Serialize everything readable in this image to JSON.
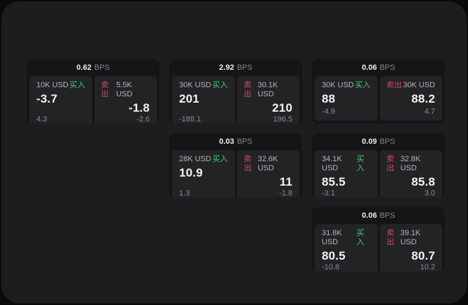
{
  "labels": {
    "bps_unit": "BPS",
    "buy": "买入",
    "sell": "卖出"
  },
  "colors": {
    "buy_accent": "#3ecf72",
    "sell_accent": "#cc4b64",
    "window_bg": "#1d1d1f",
    "card_bg": "#151517",
    "panel_bg": "#232326"
  },
  "cards": [
    {
      "bps": "0.62",
      "buy": {
        "size": "10K USD",
        "value": "-3.7",
        "sub": "4.3"
      },
      "sell": {
        "size": "5.5K USD",
        "value": "-1.8",
        "sub": "-2.6"
      }
    },
    {
      "bps": "2.92",
      "buy": {
        "size": "30K USD",
        "value": "201",
        "sub": "-188.1"
      },
      "sell": {
        "size": "30.1K USD",
        "value": "210",
        "sub": "196.5"
      }
    },
    {
      "bps": "0.06",
      "buy": {
        "size": "30K USD",
        "value": "88",
        "sub": "-4.9"
      },
      "sell": {
        "size": "30K USD",
        "value": "88.2",
        "sub": "4.7"
      }
    },
    {
      "bps": "0.03",
      "buy": {
        "size": "28K USD",
        "value": "10.9",
        "sub": "1.3"
      },
      "sell": {
        "size": "32.6K USD",
        "value": "11",
        "sub": "-1.8"
      }
    },
    {
      "bps": "0.09",
      "buy": {
        "size": "34.1K USD",
        "value": "85.5",
        "sub": "-3.1"
      },
      "sell": {
        "size": "32.8K USD",
        "value": "85.8",
        "sub": "3.0"
      }
    },
    {
      "bps": "0.06",
      "buy": {
        "size": "31.8K USD",
        "value": "80.5",
        "sub": "-10.8"
      },
      "sell": {
        "size": "39.1K USD",
        "value": "80.7",
        "sub": "10.2"
      }
    }
  ]
}
